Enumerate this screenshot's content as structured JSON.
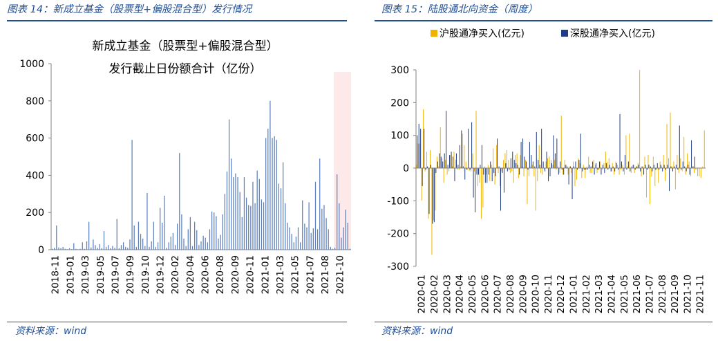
{
  "left": {
    "figure_title": "图表 14：新成立基金（股票型+偏股混合型）发行情况",
    "source": "资料来源：wind",
    "chart_data": {
      "type": "bar",
      "title_line1": "新成立基金（股票型+偏股混合型）",
      "title_line2": "发行截止日份额合计（亿份）",
      "xlabel": "",
      "ylabel": "",
      "ylim": [
        0,
        1000
      ],
      "yticks": [
        0,
        200,
        400,
        600,
        800,
        1000
      ],
      "xticks": [
        "2018-11",
        "2019-01",
        "2019-03",
        "2019-05",
        "2019-07",
        "2019-09",
        "2019-10",
        "2019-12",
        "2020-02",
        "2020-04",
        "2020-06",
        "2020-08",
        "2020-09",
        "2020-11",
        "2021-01",
        "2021-03",
        "2021-05",
        "2021-07",
        "2021-08",
        "2021-10"
      ],
      "values": [
        5,
        10,
        130,
        12,
        8,
        15,
        5,
        3,
        8,
        3,
        35,
        5,
        3,
        5,
        40,
        5,
        45,
        150,
        12,
        55,
        25,
        10,
        30,
        8,
        100,
        15,
        25,
        8,
        20,
        10,
        165,
        8,
        25,
        40,
        15,
        10,
        55,
        590,
        130,
        15,
        150,
        85,
        60,
        20,
        305,
        15,
        45,
        150,
        15,
        40,
        225,
        145,
        290,
        10,
        40,
        70,
        90,
        25,
        140,
        520,
        190,
        60,
        20,
        110,
        175,
        20,
        150,
        105,
        25,
        45,
        75,
        65,
        40,
        110,
        205,
        200,
        180,
        60,
        80,
        190,
        300,
        420,
        700,
        490,
        390,
        410,
        390,
        310,
        175,
        390,
        280,
        240,
        235,
        365,
        250,
        425,
        380,
        270,
        255,
        600,
        650,
        800,
        600,
        610,
        590,
        355,
        330,
        470,
        250,
        145,
        120,
        85,
        40,
        70,
        120,
        40,
        265,
        140,
        120,
        255,
        90,
        115,
        365,
        110,
        490,
        220,
        240,
        170,
        110,
        15,
        5,
        10,
        405,
        250,
        65,
        120,
        215,
        145,
        5
      ],
      "highlight_region": {
        "from_tick": "2021-08",
        "to": "end",
        "color": "#fde9e9"
      },
      "bar_color": "#5b7fbe"
    }
  },
  "right": {
    "figure_title": "图表 15：陆股通北向资金（周度）",
    "source": "资料来源：wind",
    "chart_data": {
      "type": "bar",
      "title": "",
      "xlabel": "",
      "ylabel": "",
      "ylim": [
        -300,
        300
      ],
      "yticks": [
        -300,
        -200,
        -100,
        0,
        100,
        200,
        300
      ],
      "xticks": [
        "2020-01",
        "2020-02",
        "2020-03",
        "2020-04",
        "2020-05",
        "2020-06",
        "2020-07",
        "2020-08",
        "2020-09",
        "2020-10",
        "2020-11",
        "2020-12",
        "2021-01",
        "2021-02",
        "2021-03",
        "2021-04",
        "2021-05",
        "2021-06",
        "2021-07",
        "2021-08",
        "2021-09",
        "2021-10",
        "2021-11"
      ],
      "legend": "top",
      "series": [
        {
          "name": "沪股通净买入(亿元)",
          "color": "#f0b400",
          "values": [
            10,
            75,
            75,
            -100,
            180,
            -10,
            50,
            -155,
            55,
            -265,
            -160,
            -130,
            35,
            5,
            125,
            30,
            -45,
            25,
            -20,
            -10,
            40,
            5,
            50,
            25,
            -5,
            -5,
            5,
            105,
            70,
            20,
            -5,
            -8,
            -10,
            45,
            -10,
            175,
            -55,
            -45,
            -155,
            -120,
            5,
            -20,
            10,
            -40,
            10,
            60,
            -50,
            70,
            -15,
            -55,
            -10,
            25,
            45,
            55,
            25,
            -15,
            -10,
            -45,
            40,
            45,
            -30,
            40,
            5,
            -25,
            25,
            -110,
            -25,
            5,
            10,
            -25,
            -130,
            -40,
            70,
            -15,
            -20,
            -5,
            20,
            30,
            35,
            25,
            10,
            25,
            -5,
            5,
            -15,
            160,
            -20,
            25,
            10,
            -20,
            5,
            -15,
            20,
            -55,
            -35,
            30,
            15,
            -30,
            10,
            -30,
            5,
            35,
            -15,
            -15,
            25,
            10,
            -15,
            -5,
            20,
            -5,
            15,
            50,
            20,
            30,
            -10,
            15,
            -20,
            20,
            10,
            -20,
            -5,
            10,
            -20,
            100,
            5,
            105,
            -15,
            10,
            -15,
            5,
            15,
            300,
            -25,
            5,
            35,
            -90,
            40,
            -110,
            -25,
            35,
            -55,
            -5,
            -45,
            20,
            5,
            40,
            -40,
            135,
            30,
            170,
            5,
            20,
            -65,
            40,
            -15,
            30,
            -10,
            95,
            -20,
            45,
            20,
            -25,
            5,
            -15,
            -5,
            -25,
            -25,
            -30,
            5,
            115
          ]
        },
        {
          "name": "深股通净买入(亿元)",
          "color": "#1f3c88",
          "values": [
            100,
            135,
            120,
            -55,
            120,
            -5,
            5,
            -140,
            10,
            -170,
            -165,
            -15,
            20,
            45,
            35,
            20,
            45,
            175,
            10,
            40,
            50,
            35,
            -40,
            45,
            10,
            70,
            115,
            5,
            -35,
            -5,
            120,
            -5,
            140,
            -90,
            -135,
            -20,
            -20,
            10,
            70,
            -20,
            -45,
            -45,
            -20,
            20,
            -40,
            -15,
            -25,
            90,
            5,
            -130,
            -15,
            -75,
            15,
            -10,
            -5,
            30,
            50,
            25,
            15,
            10,
            -20,
            80,
            90,
            35,
            20,
            -5,
            80,
            40,
            20,
            5,
            110,
            25,
            10,
            120,
            20,
            -10,
            50,
            -40,
            -25,
            15,
            100,
            45,
            90,
            -20,
            20,
            -5,
            -20,
            10,
            5,
            -50,
            5,
            -95,
            5,
            20,
            -5,
            25,
            105,
            -10,
            -5,
            -5,
            -5,
            10,
            5,
            20,
            -20,
            15,
            -5,
            20,
            -20,
            10,
            -15,
            15,
            -5,
            10,
            -10,
            5,
            -10,
            15,
            -5,
            165,
            20,
            -10,
            40,
            -5,
            20,
            -10,
            5,
            10,
            -5,
            5,
            10,
            -10,
            5,
            -20,
            10,
            -5,
            10,
            5,
            -10,
            10,
            -5,
            15,
            -5,
            10,
            -10,
            10,
            -5,
            10,
            -70,
            5,
            -10,
            5,
            10,
            -5,
            130,
            -5,
            20,
            5,
            -10,
            10,
            -20,
            85,
            5,
            35
          ]
        }
      ]
    }
  }
}
